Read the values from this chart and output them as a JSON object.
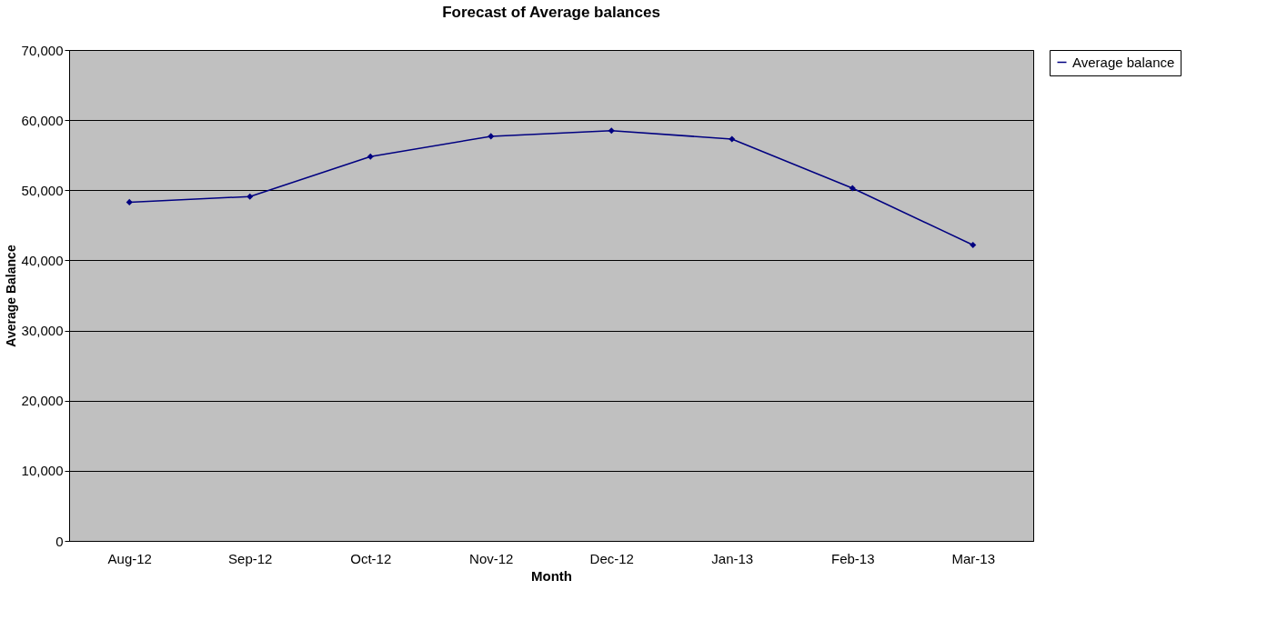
{
  "chart_data": {
    "type": "line",
    "title": "Forecast of Average balances",
    "xlabel": "Month",
    "ylabel": "Average Balance",
    "categories": [
      "Aug-12",
      "Sep-12",
      "Oct-12",
      "Nov-12",
      "Dec-12",
      "Jan-13",
      "Feb-13",
      "Mar-13"
    ],
    "series": [
      {
        "name": "Average balance",
        "color": "#000080",
        "values": [
          48300,
          49100,
          54800,
          57700,
          58500,
          57300,
          50300,
          42200
        ]
      }
    ],
    "ylim": [
      0,
      70000
    ],
    "yticks": [
      0,
      {
        "value": 10000,
        "label": "10,000"
      },
      {
        "value": 20000,
        "label": "20,000"
      },
      {
        "value": 30000,
        "label": "30,000"
      },
      {
        "value": 40000,
        "label": "40,000"
      },
      {
        "value": 50000,
        "label": "50,000"
      },
      {
        "value": 60000,
        "label": "60,000"
      },
      {
        "value": 70000,
        "label": "70,000"
      }
    ],
    "grid": "y",
    "legend": "right",
    "marker": "diamond",
    "line_style": "solid"
  }
}
